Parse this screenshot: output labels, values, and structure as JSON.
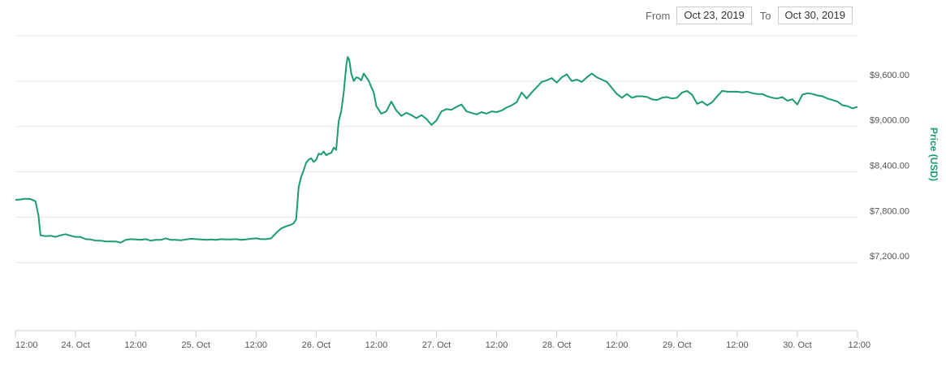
{
  "range_selector": {
    "from_label": "From",
    "from_value": "Oct 23, 2019",
    "to_label": "To",
    "to_value": "Oct 30, 2019"
  },
  "colors": {
    "line": "#1a9b73",
    "grid": "#e6e6e6",
    "axis": "#cccccc"
  },
  "chart_data": {
    "type": "line",
    "title": "",
    "xlabel": "",
    "ylabel": "Price (USD)",
    "y_ticks": [
      {
        "value": 7200,
        "label": "$7,200.00"
      },
      {
        "value": 7800,
        "label": "$7,800.00"
      },
      {
        "value": 8400,
        "label": "$8,400.00"
      },
      {
        "value": 9000,
        "label": "$9,000.00"
      },
      {
        "value": 9600,
        "label": "$9,600.00"
      }
    ],
    "x_ticks": [
      "12:00",
      "24. Oct",
      "12:00",
      "25. Oct",
      "12:00",
      "26. Oct",
      "12:00",
      "27. Oct",
      "12:00",
      "28. Oct",
      "12:00",
      "29. Oct",
      "12:00",
      "30. Oct",
      "12:00"
    ],
    "x_range_hours": [
      0,
      168
    ],
    "ylim": [
      6300,
      10200
    ],
    "grid": true,
    "series": [
      {
        "points": [
          [
            0,
            8030
          ],
          [
            1,
            8035
          ],
          [
            2,
            8045
          ],
          [
            3,
            8040
          ],
          [
            4,
            8010
          ],
          [
            4.6,
            7820
          ],
          [
            5,
            7560
          ],
          [
            6,
            7550
          ],
          [
            7,
            7555
          ],
          [
            8,
            7540
          ],
          [
            9,
            7560
          ],
          [
            10,
            7575
          ],
          [
            11,
            7555
          ],
          [
            12,
            7540
          ],
          [
            13,
            7540
          ],
          [
            14,
            7510
          ],
          [
            15,
            7505
          ],
          [
            16,
            7490
          ],
          [
            17,
            7490
          ],
          [
            18,
            7480
          ],
          [
            19,
            7480
          ],
          [
            20,
            7480
          ],
          [
            21,
            7465
          ],
          [
            22,
            7500
          ],
          [
            23,
            7510
          ],
          [
            24,
            7505
          ],
          [
            25,
            7500
          ],
          [
            26,
            7510
          ],
          [
            27,
            7490
          ],
          [
            28,
            7500
          ],
          [
            29,
            7500
          ],
          [
            30,
            7520
          ],
          [
            31,
            7500
          ],
          [
            32,
            7500
          ],
          [
            33,
            7495
          ],
          [
            34,
            7505
          ],
          [
            35,
            7515
          ],
          [
            36,
            7510
          ],
          [
            37,
            7505
          ],
          [
            38,
            7500
          ],
          [
            39,
            7505
          ],
          [
            40,
            7500
          ],
          [
            41,
            7510
          ],
          [
            42,
            7505
          ],
          [
            43,
            7505
          ],
          [
            44,
            7510
          ],
          [
            45,
            7500
          ],
          [
            46,
            7505
          ],
          [
            47,
            7515
          ],
          [
            48,
            7520
          ],
          [
            49,
            7510
          ],
          [
            50,
            7510
          ],
          [
            51,
            7520
          ],
          [
            52,
            7590
          ],
          [
            53,
            7650
          ],
          [
            54,
            7680
          ],
          [
            55,
            7700
          ],
          [
            55.5,
            7720
          ],
          [
            56,
            7770
          ],
          [
            56.5,
            8200
          ],
          [
            57,
            8330
          ],
          [
            57.5,
            8420
          ],
          [
            58,
            8520
          ],
          [
            58.5,
            8560
          ],
          [
            59,
            8580
          ],
          [
            59.5,
            8530
          ],
          [
            60,
            8560
          ],
          [
            60.5,
            8640
          ],
          [
            61,
            8630
          ],
          [
            61.5,
            8670
          ],
          [
            62,
            8620
          ],
          [
            62.5,
            8640
          ],
          [
            63,
            8650
          ],
          [
            63.5,
            8720
          ],
          [
            64,
            8690
          ],
          [
            64.5,
            9070
          ],
          [
            65,
            9200
          ],
          [
            65.5,
            9450
          ],
          [
            66,
            9800
          ],
          [
            66.3,
            9920
          ],
          [
            66.6,
            9880
          ],
          [
            67,
            9700
          ],
          [
            67.5,
            9600
          ],
          [
            68,
            9650
          ],
          [
            68.5,
            9640
          ],
          [
            69,
            9610
          ],
          [
            69.5,
            9700
          ],
          [
            70,
            9650
          ],
          [
            70.5,
            9600
          ],
          [
            71,
            9520
          ],
          [
            71.5,
            9450
          ],
          [
            72,
            9270
          ],
          [
            73,
            9170
          ],
          [
            74,
            9200
          ],
          [
            75,
            9330
          ],
          [
            76,
            9210
          ],
          [
            77,
            9140
          ],
          [
            78,
            9180
          ],
          [
            79,
            9150
          ],
          [
            80,
            9110
          ],
          [
            81,
            9150
          ],
          [
            82,
            9100
          ],
          [
            83,
            9020
          ],
          [
            84,
            9080
          ],
          [
            85,
            9200
          ],
          [
            86,
            9230
          ],
          [
            87,
            9220
          ],
          [
            88,
            9260
          ],
          [
            89,
            9290
          ],
          [
            90,
            9200
          ],
          [
            91,
            9180
          ],
          [
            92,
            9160
          ],
          [
            93,
            9190
          ],
          [
            94,
            9170
          ],
          [
            95,
            9200
          ],
          [
            96,
            9190
          ],
          [
            97,
            9210
          ],
          [
            98,
            9250
          ],
          [
            99,
            9280
          ],
          [
            100,
            9320
          ],
          [
            101,
            9450
          ],
          [
            102,
            9370
          ],
          [
            103,
            9450
          ],
          [
            104,
            9520
          ],
          [
            105,
            9590
          ],
          [
            106,
            9610
          ],
          [
            107,
            9640
          ],
          [
            108,
            9580
          ],
          [
            109,
            9650
          ],
          [
            110,
            9690
          ],
          [
            111,
            9600
          ],
          [
            112,
            9620
          ],
          [
            113,
            9590
          ],
          [
            114,
            9650
          ],
          [
            115,
            9700
          ],
          [
            116,
            9650
          ],
          [
            117,
            9620
          ],
          [
            118,
            9590
          ],
          [
            119,
            9510
          ],
          [
            120,
            9430
          ],
          [
            121,
            9380
          ],
          [
            122,
            9430
          ],
          [
            123,
            9380
          ],
          [
            124,
            9400
          ],
          [
            125,
            9400
          ],
          [
            126,
            9390
          ],
          [
            127,
            9360
          ],
          [
            128,
            9350
          ],
          [
            129,
            9380
          ],
          [
            130,
            9390
          ],
          [
            131,
            9370
          ],
          [
            132,
            9380
          ],
          [
            133,
            9450
          ],
          [
            134,
            9470
          ],
          [
            135,
            9420
          ],
          [
            136,
            9300
          ],
          [
            137,
            9330
          ],
          [
            138,
            9280
          ],
          [
            139,
            9320
          ],
          [
            140,
            9400
          ],
          [
            141,
            9470
          ],
          [
            142,
            9460
          ],
          [
            143,
            9460
          ],
          [
            144,
            9460
          ],
          [
            145,
            9450
          ],
          [
            146,
            9460
          ],
          [
            147,
            9440
          ],
          [
            148,
            9430
          ],
          [
            149,
            9430
          ],
          [
            150,
            9400
          ],
          [
            151,
            9380
          ],
          [
            152,
            9370
          ],
          [
            153,
            9390
          ],
          [
            154,
            9340
          ],
          [
            155,
            9360
          ],
          [
            156,
            9290
          ],
          [
            157,
            9420
          ],
          [
            158,
            9440
          ],
          [
            159,
            9430
          ],
          [
            160,
            9410
          ],
          [
            161,
            9400
          ],
          [
            162,
            9370
          ],
          [
            163,
            9350
          ],
          [
            164,
            9330
          ],
          [
            165,
            9280
          ],
          [
            166,
            9270
          ],
          [
            167,
            9240
          ],
          [
            168,
            9260
          ]
        ]
      }
    ]
  }
}
